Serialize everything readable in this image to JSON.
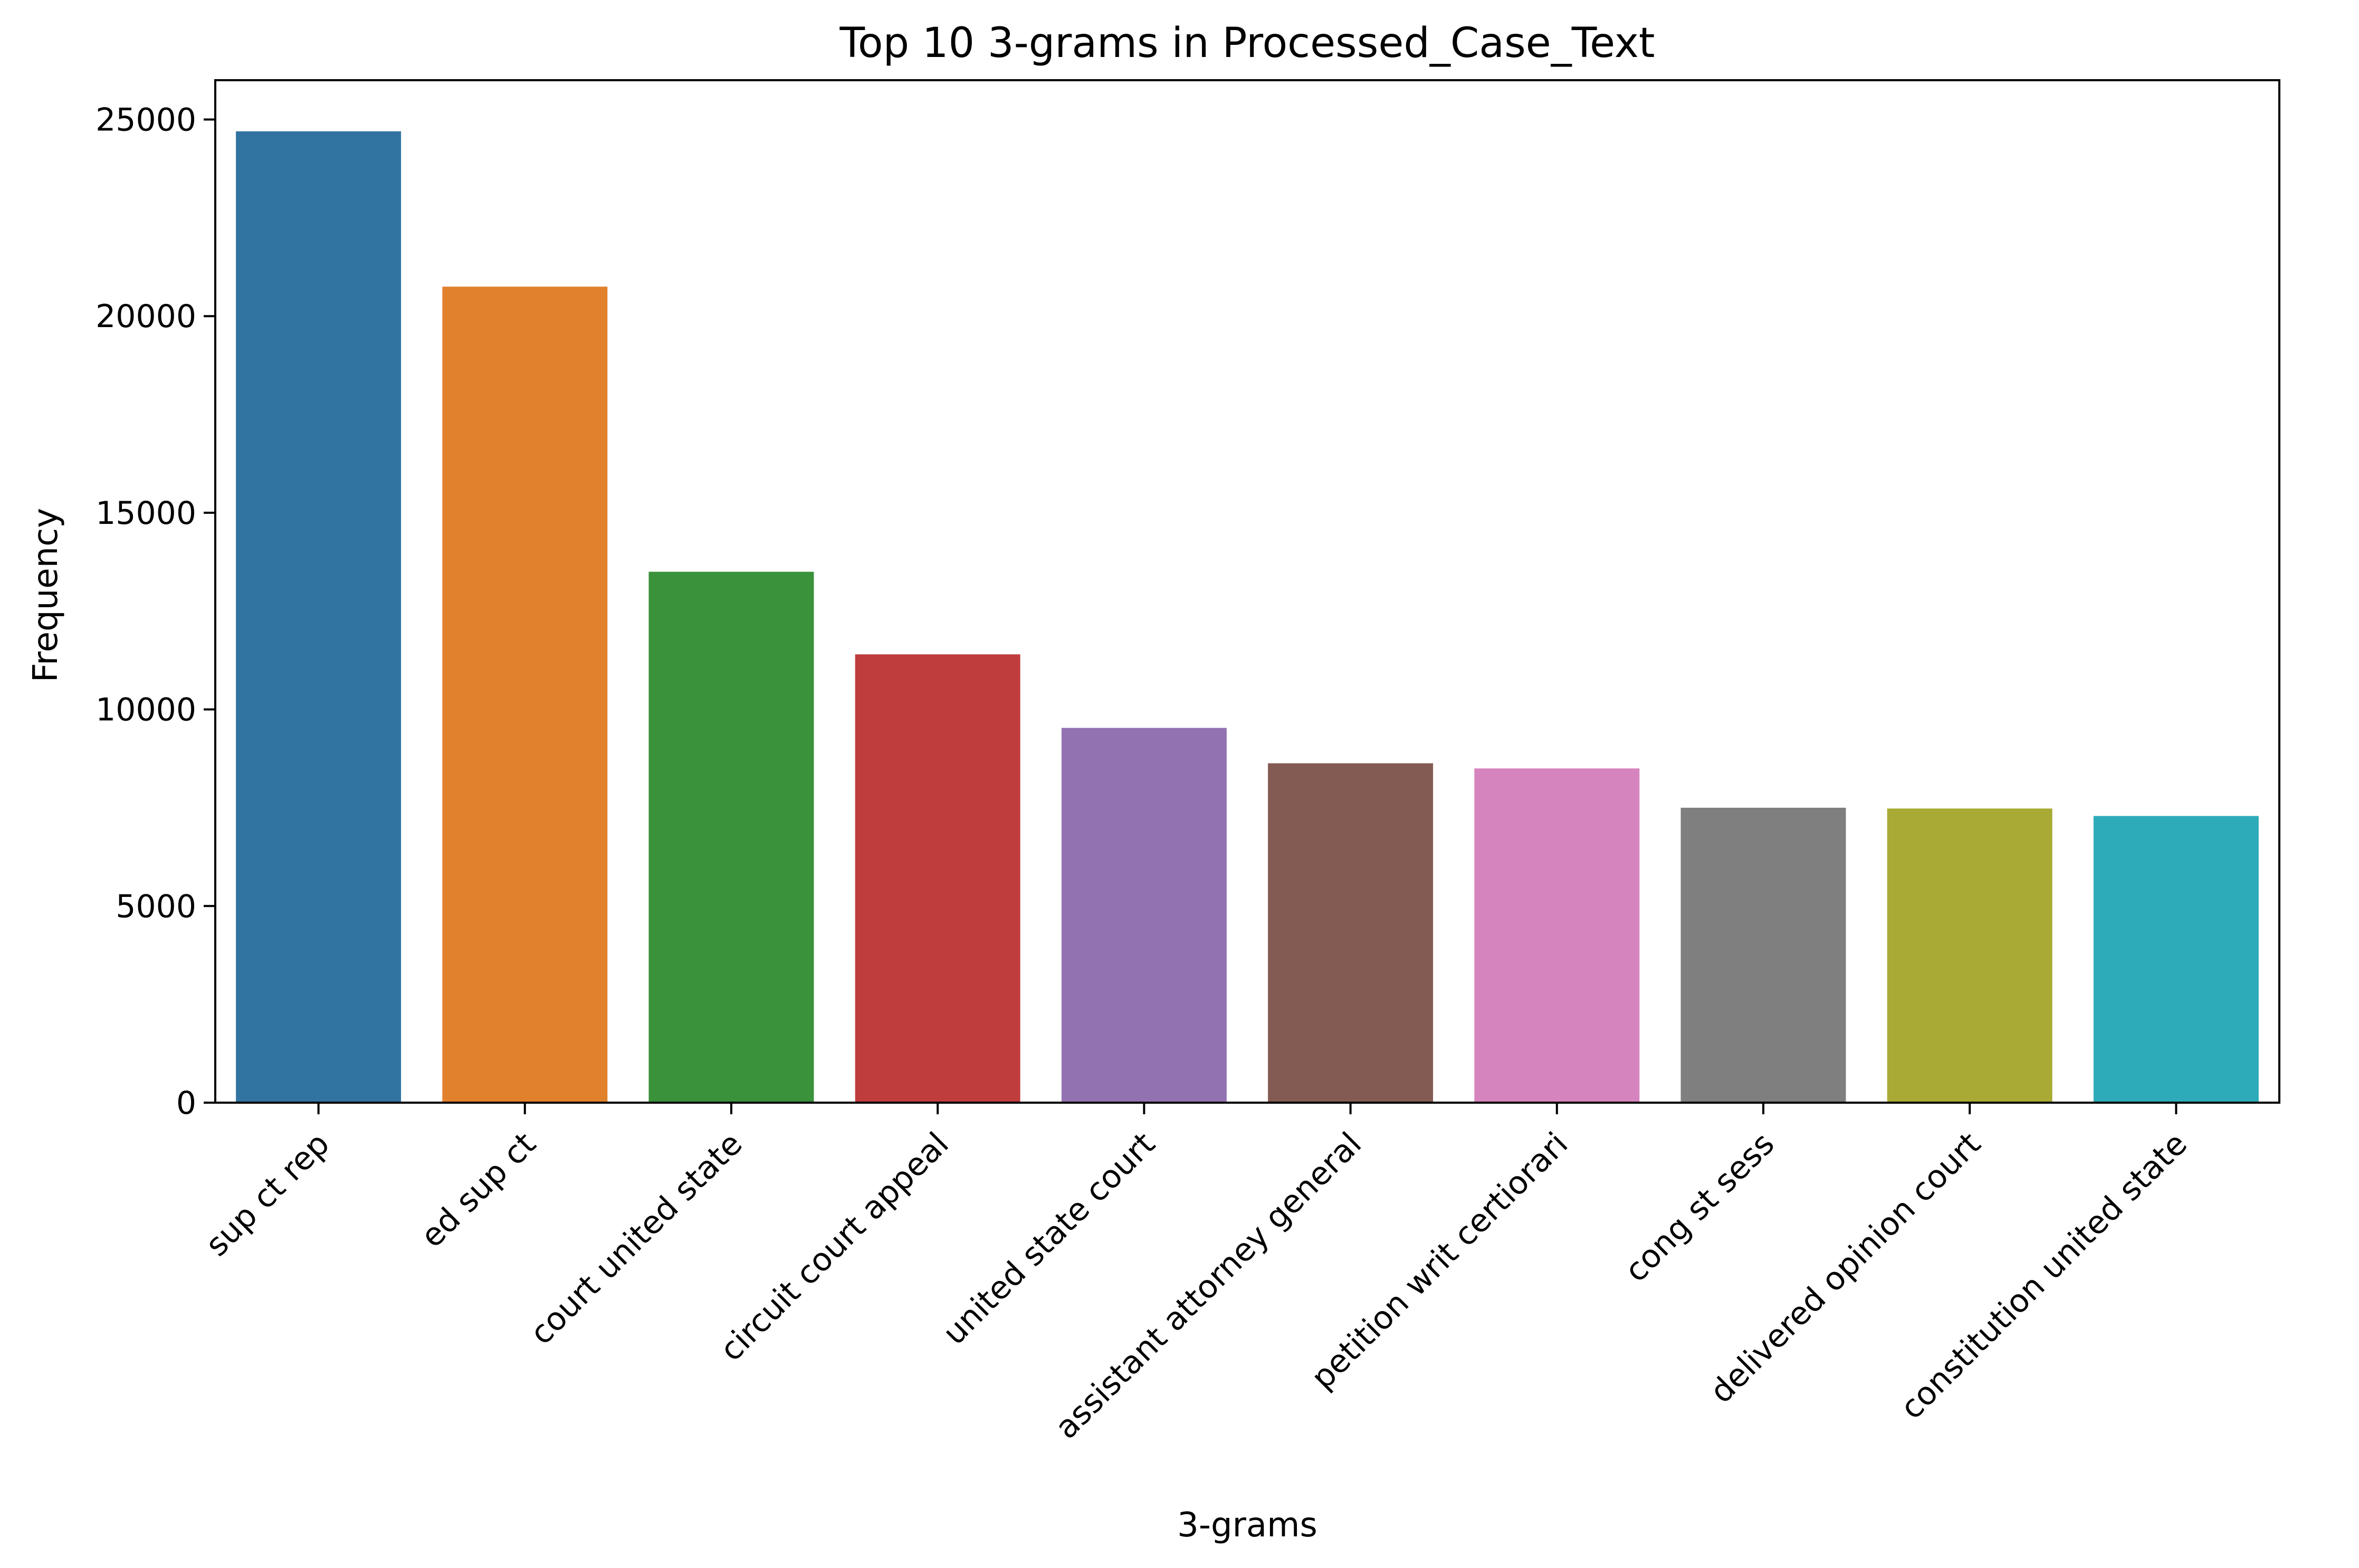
{
  "chart_data": {
    "type": "bar",
    "title": "Top 10 3-grams in Processed_Case_Text",
    "xlabel": "3-grams",
    "ylabel": "Frequency",
    "categories": [
      "sup ct rep",
      "ed sup ct",
      "court united state",
      "circuit court appeal",
      "united state court",
      "assistant attorney general",
      "petition writ certiorari",
      "cong st sess",
      "delivered opinion court",
      "constitution united state"
    ],
    "values": [
      24700,
      20750,
      13500,
      11400,
      9530,
      8630,
      8500,
      7500,
      7480,
      7290
    ],
    "colors": [
      "#3274a1",
      "#e1812c",
      "#3a923a",
      "#c03d3e",
      "#9372b2",
      "#845b53",
      "#d684bd",
      "#7f7f7f",
      "#a9aa35",
      "#2eabb8"
    ],
    "ylim": [
      0,
      26000
    ],
    "yticks": [
      0,
      5000,
      10000,
      15000,
      20000,
      25000
    ],
    "ytick_labels": [
      "0",
      "5000",
      "10000",
      "15000",
      "20000",
      "25000"
    ],
    "grid": false,
    "legend": "none"
  }
}
